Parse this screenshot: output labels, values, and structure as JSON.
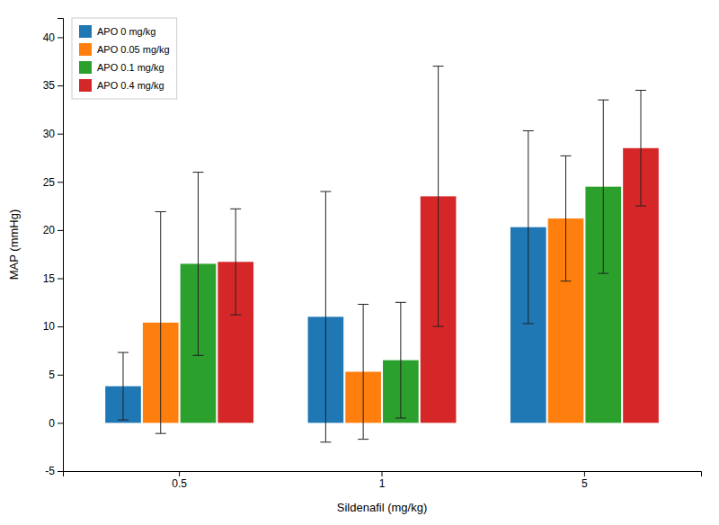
{
  "chart_data": {
    "type": "bar",
    "xlabel": "Sildenafil (mg/kg)",
    "ylabel": "MAP (mmHg)",
    "categories": [
      "0.5",
      "1",
      "5"
    ],
    "series": [
      {
        "name": "APO 0 mg/kg",
        "values": [
          3.8,
          11.0,
          20.3
        ],
        "errors": [
          3.5,
          13.0,
          10.0
        ]
      },
      {
        "name": "APO 0.05 mg/kg",
        "values": [
          10.4,
          5.3,
          21.2
        ],
        "errors": [
          11.5,
          7.0,
          6.5
        ]
      },
      {
        "name": "APO 0.1 mg/kg",
        "values": [
          16.5,
          6.5,
          24.5
        ],
        "errors": [
          9.5,
          6.0,
          9.0
        ]
      },
      {
        "name": "APO 0.4 mg/kg",
        "values": [
          16.7,
          23.5,
          28.5
        ],
        "errors": [
          5.5,
          13.5,
          6.0
        ]
      }
    ],
    "ylim": [
      -5,
      42
    ],
    "yticks": [
      -5,
      0,
      5,
      10,
      15,
      20,
      25,
      30,
      35,
      40
    ],
    "grid": false,
    "legend": "upper left"
  }
}
